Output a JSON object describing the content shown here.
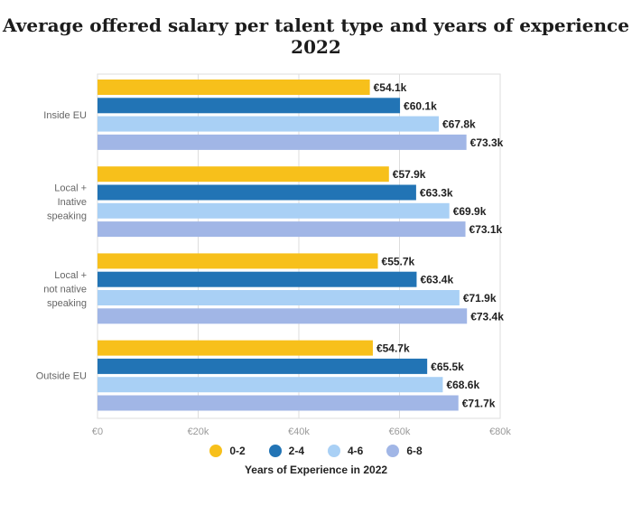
{
  "title": "Average offered salary per talent type and years of experience 2022",
  "chart_data": {
    "type": "bar",
    "orientation": "horizontal",
    "title": "Average offered salary per talent type and years of experience 2022",
    "categories": [
      [
        "Inside EU"
      ],
      [
        "Local +",
        "Inative",
        "speaking"
      ],
      [
        "Local +",
        "not native",
        "speaking"
      ],
      [
        "Outside EU"
      ]
    ],
    "series": [
      {
        "name": "0-2",
        "color": "#f7c01b",
        "values": [
          54.1,
          57.9,
          55.7,
          54.7
        ],
        "labels": [
          "€54.1k",
          "€57.9k",
          "€55.7k",
          "€54.7k"
        ]
      },
      {
        "name": "2-4",
        "color": "#2274b5",
        "values": [
          60.1,
          63.3,
          63.4,
          65.5
        ],
        "labels": [
          "€60.1k",
          "€63.3k",
          "€63.4k",
          "€65.5k"
        ]
      },
      {
        "name": "4-6",
        "color": "#a9d0f5",
        "values": [
          67.8,
          69.9,
          71.9,
          68.6
        ],
        "labels": [
          "€67.8k",
          "€69.9k",
          "€71.9k",
          "€68.6k"
        ]
      },
      {
        "name": "6-8",
        "color": "#a1b6e6",
        "values": [
          73.3,
          73.1,
          73.4,
          71.7
        ],
        "labels": [
          "€73.3k",
          "€73.1k",
          "€73.4k",
          "€71.7k"
        ]
      }
    ],
    "xlim": [
      0,
      80
    ],
    "xticks": [
      0,
      20,
      40,
      60,
      80
    ],
    "xtick_labels": [
      "€0",
      "€20k",
      "€40k",
      "€60k",
      "€80k"
    ],
    "grid": true,
    "legend_position": "bottom",
    "legend_title": "Years of Experience in 2022",
    "xlabel": "",
    "ylabel": ""
  }
}
